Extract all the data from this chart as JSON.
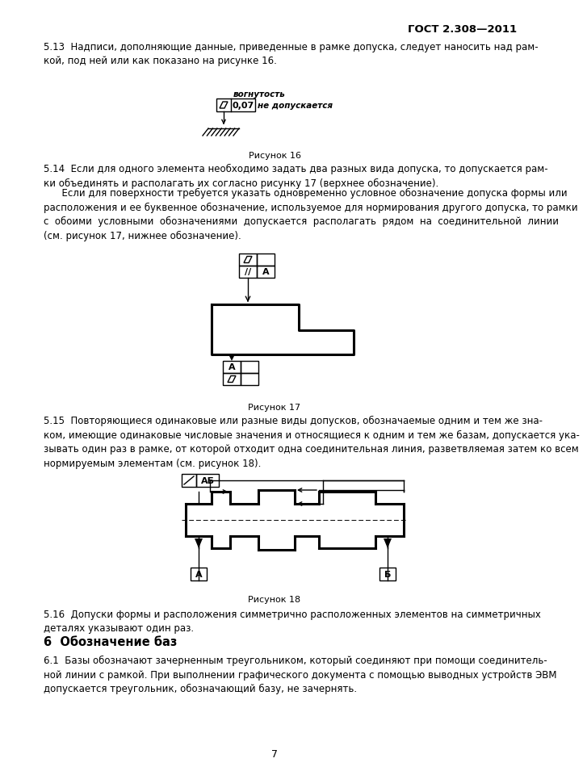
{
  "title": "ГОСТ 2.308—2011",
  "page_num": "7",
  "bg_color": "#ffffff",
  "text_color": "#000000",
  "para513": "5.13  Надписи, дополняющие данные, приведенные в рамке допуска, следует наносить над рам-\nкой, под ней или как показано на рисунке 16.",
  "fig16_caption": "Рисунок 16",
  "para514_1": "5.14  Если для одного элемента необходимо задать два разных вида допуска, то допускается рам-\nки объединять и располагать их согласно рисунку 17 (верхнее обозначение).",
  "para514_2": "      Если для поверхности требуется указать одновременно условное обозначение допуска формы или\nрасположения и ее буквенное обозначение, используемое для нормирования другого допуска, то рамки\nс  обоими  условными  обозначениями  допускается  располагать  рядом  на  соединительной  линии\n(см. рисунок 17, нижнее обозначение).",
  "fig17_caption": "Рисунок 17",
  "para515": "5.15  Повторяющиеся одинаковые или разные виды допусков, обозначаемые одним и тем же зна-\nком, имеющие одинаковые числовые значения и относящиеся к одним и тем же базам, допускается ука-\nзывать один раз в рамке, от которой отходит одна соединительная линия, разветвляемая затем ко всем\nнормируемым элементам (см. рисунок 18).",
  "fig18_caption": "Рисунок 18",
  "para516": "5.16  Допуски формы и расположения симметрично расположенных элементов на симметричных\nдеталях указывают один раз.",
  "section6_title": "6  Обозначение баз",
  "para61": "6.1  Базы обозначают зачерненным треугольником, который соединяют при помощи соединитель-\nной линии с рамкой. При выполнении графического документа с помощью выводных устройств ЭВМ\nдопускается треугольник, обозначающий базу, не зачернять."
}
